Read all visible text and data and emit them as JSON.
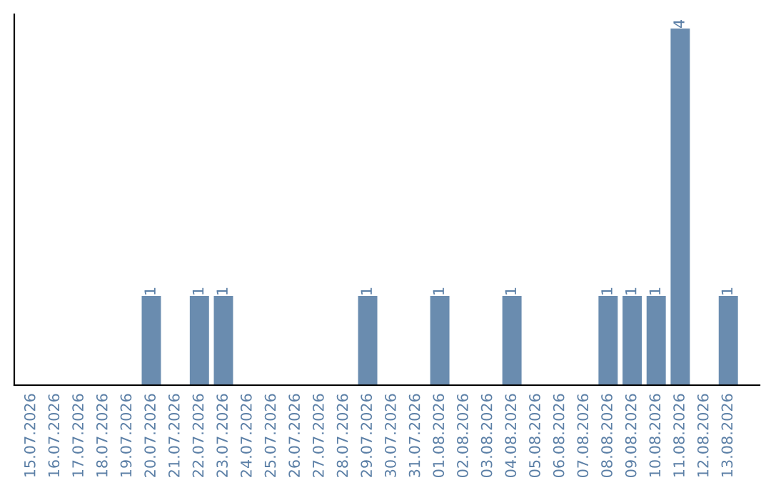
{
  "chart_data": {
    "type": "bar",
    "categories": [
      "15.07.2026",
      "16.07.2026",
      "17.07.2026",
      "18.07.2026",
      "19.07.2026",
      "20.07.2026",
      "21.07.2026",
      "22.07.2026",
      "23.07.2026",
      "24.07.2026",
      "25.07.2026",
      "26.07.2026",
      "27.07.2026",
      "28.07.2026",
      "29.07.2026",
      "30.07.2026",
      "31.07.2026",
      "01.08.2026",
      "02.08.2026",
      "03.08.2026",
      "04.08.2026",
      "05.08.2026",
      "06.08.2026",
      "07.08.2026",
      "08.08.2026",
      "09.08.2026",
      "10.08.2026",
      "11.08.2026",
      "12.08.2026",
      "13.08.2026"
    ],
    "values": [
      0,
      0,
      0,
      0,
      0,
      1,
      0,
      1,
      1,
      0,
      0,
      0,
      0,
      0,
      1,
      0,
      0,
      1,
      0,
      0,
      1,
      0,
      0,
      0,
      1,
      1,
      1,
      4,
      0,
      1
    ],
    "value_labels": [
      null,
      null,
      null,
      null,
      null,
      "1",
      null,
      "1",
      "1",
      null,
      null,
      null,
      null,
      null,
      "1",
      null,
      null,
      "1",
      null,
      null,
      "1",
      null,
      null,
      null,
      "1",
      "1",
      "1",
      "4",
      null,
      "1"
    ],
    "color": "#6a8caf",
    "tick_labels": "x",
    "grid": false,
    "legend": false
  }
}
